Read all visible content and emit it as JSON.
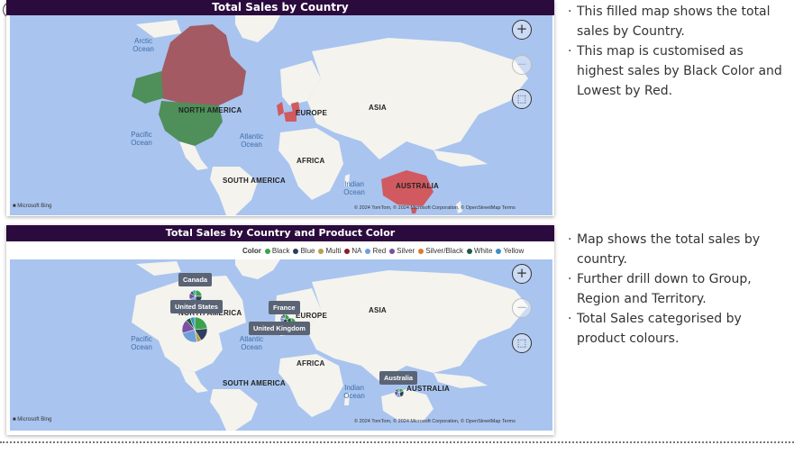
{
  "map1": {
    "title": "Total Sales by Country",
    "continents": {
      "na": "NORTH AMERICA",
      "europe": "EUROPE",
      "asia": "ASIA",
      "africa": "AFRICA",
      "sa": "SOUTH AMERICA",
      "australia": "AUSTRALIA"
    },
    "oceans": {
      "arctic": "Arctic Ocean",
      "pacific": "Pacific Ocean",
      "atlantic": "Atlantic Ocean",
      "indian": "Indian Ocean"
    },
    "bing": "Microsoft Bing",
    "credit": "© 2024 TomTom, © 2024 Microsoft Corporation, © OpenStreetMap  Terms"
  },
  "map2": {
    "title": "Total Sales by Country and Product Color",
    "legend_title": "Color",
    "legend": [
      {
        "label": "Black",
        "color": "#3ba44b"
      },
      {
        "label": "Blue",
        "color": "#2d3f5c"
      },
      {
        "label": "Multi",
        "color": "#b8a04a"
      },
      {
        "label": "NA",
        "color": "#8a1e2a"
      },
      {
        "label": "Red",
        "color": "#6fa0d8"
      },
      {
        "label": "Silver",
        "color": "#7b4fa3"
      },
      {
        "label": "Silver/Black",
        "color": "#e07a2a"
      },
      {
        "label": "White",
        "color": "#1d5c3a"
      },
      {
        "label": "Yellow",
        "color": "#3b8fc7"
      }
    ],
    "tooltips": {
      "canada": "Canada",
      "us": "United States",
      "france": "France",
      "uk": "United Kingdom",
      "australia": "Australia"
    },
    "continents": {
      "na": "NORTH AMERICA",
      "europe": "EUROPE",
      "asia": "ASIA",
      "africa": "AFRICA",
      "sa": "SOUTH AMERICA",
      "australia": "AUSTRALIA"
    },
    "oceans": {
      "pacific": "Pacific Ocean",
      "atlantic": "Atlantic Ocean",
      "indian": "Indian Ocean"
    },
    "bing": "Microsoft Bing",
    "credit": "© 2024 TomTom, © 2024 Microsoft Corporation, © OpenStreetMap  Terms"
  },
  "controls": {
    "zoom_in": "+",
    "zoom_out": "−",
    "select": "⬚"
  },
  "notes1": [
    "This filled map shows the total sales by Country.",
    "This map is customised as highest sales by Black Color and Lowest by Red."
  ],
  "notes2": [
    "Map shows the total sales by country.",
    "Further drill down to Group, Region and Territory.",
    "Total Sales categorised by product colours."
  ],
  "colors": {
    "land": "#f4f3ee",
    "water": "#a9c4ef",
    "high": "#4e8f5a",
    "mid": "#a45a63",
    "low": "#d05a5f",
    "title_bg": "#2b0a3d"
  }
}
